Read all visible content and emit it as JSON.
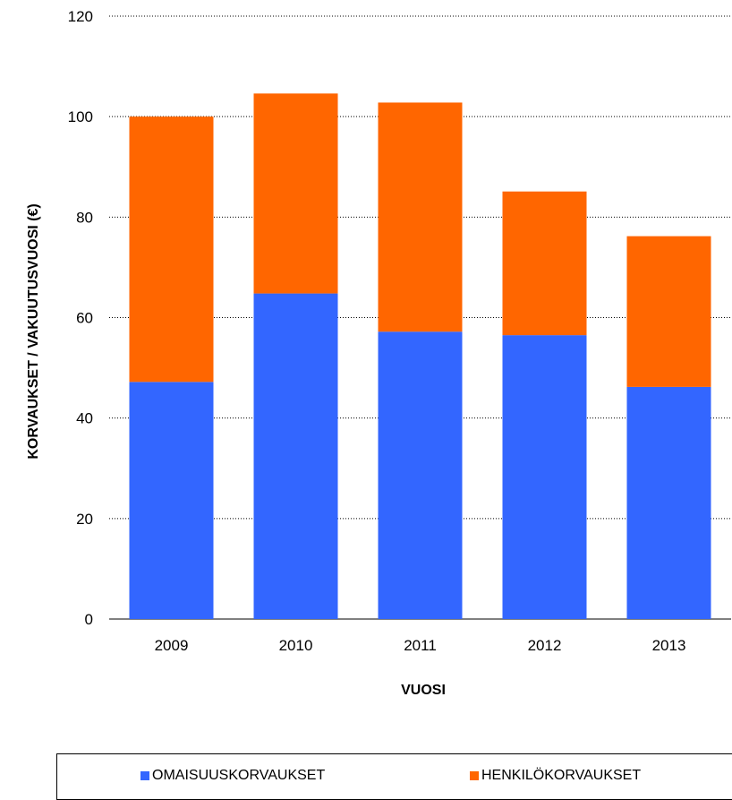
{
  "chart_data": {
    "type": "bar",
    "stacked": true,
    "categories": [
      "2009",
      "2010",
      "2011",
      "2012",
      "2013"
    ],
    "series": [
      {
        "name": "OMAISUUSKORVAUKSET",
        "color": "#3366ff",
        "values": [
          47.2,
          64.8,
          57.2,
          56.5,
          46.2
        ]
      },
      {
        "name": "HENKILÖKORVAUKSET",
        "color": "#ff6600",
        "values": [
          52.8,
          39.8,
          45.6,
          28.6,
          30.0
        ]
      }
    ],
    "xlabel": "VUOSI",
    "ylabel": "KORVAUKSET / VAKUUTUSVUOSI (€)",
    "ylim": [
      0,
      120
    ],
    "yticks": [
      "0",
      "20",
      "40",
      "60",
      "80",
      "100",
      "120"
    ],
    "grid": "horizontal dotted",
    "legend_position": "bottom"
  }
}
